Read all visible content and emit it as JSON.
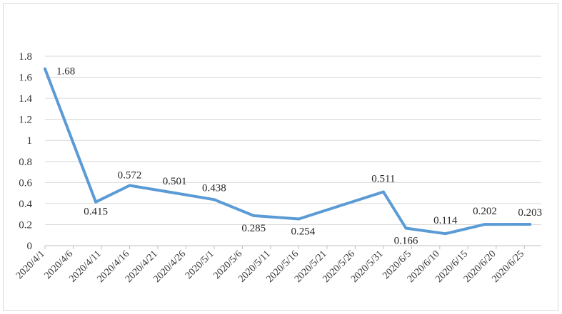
{
  "chart_data": {
    "type": "line",
    "title": "",
    "xlabel": "",
    "ylabel": "",
    "ylim": [
      0,
      1.8
    ],
    "yticks": [
      "0",
      "0.2",
      "0.4",
      "0.6",
      "0.8",
      "1",
      "1.2",
      "1.4",
      "1.6",
      "1.8"
    ],
    "xticks": [
      "2020/4/1",
      "2020/4/6",
      "2020/4/11",
      "2020/4/16",
      "2020/4/21",
      "2020/4/26",
      "2020/5/1",
      "2020/5/6",
      "2020/5/11",
      "2020/5/16",
      "2020/5/21",
      "2020/5/26",
      "2020/5/31",
      "2020/6/5",
      "2020/6/10",
      "2020/6/15",
      "2020/6/20",
      "2020/6/25"
    ],
    "grid": "horizontal",
    "legend": "none",
    "color": "#5b9bd5",
    "series": [
      {
        "points": [
          {
            "x": "2020/4/1",
            "y": 1.68,
            "label": "1.68"
          },
          {
            "x": "2020/4/10",
            "y": 0.415,
            "label": "0.415"
          },
          {
            "x": "2020/4/16",
            "y": 0.572,
            "label": "0.572"
          },
          {
            "x": "2020/4/24",
            "y": 0.501,
            "label": "0.501"
          },
          {
            "x": "2020/5/1",
            "y": 0.438,
            "label": "0.438"
          },
          {
            "x": "2020/5/8",
            "y": 0.285,
            "label": "0.285"
          },
          {
            "x": "2020/5/16",
            "y": 0.254,
            "label": "0.254"
          },
          {
            "x": "2020/5/31",
            "y": 0.511,
            "label": "0.511"
          },
          {
            "x": "2020/6/4",
            "y": 0.166,
            "label": "0.166"
          },
          {
            "x": "2020/6/11",
            "y": 0.114,
            "label": "0.114"
          },
          {
            "x": "2020/6/18",
            "y": 0.202,
            "label": "0.202"
          },
          {
            "x": "2020/6/26",
            "y": 0.203,
            "label": "0.203"
          }
        ]
      }
    ]
  }
}
